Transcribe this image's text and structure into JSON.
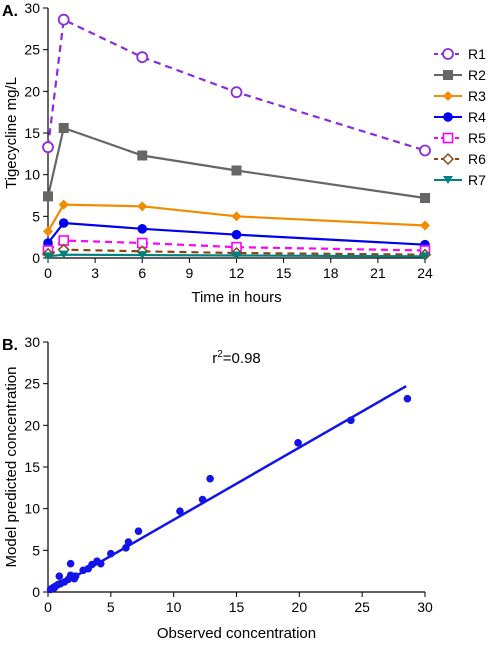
{
  "chart_data": [
    {
      "type": "line",
      "panel_label": "A.",
      "xlabel": "Time in hours",
      "ylabel": "Tigecycline mg/L",
      "xlim": [
        0,
        24
      ],
      "ylim": [
        0,
        30
      ],
      "xticks": [
        0,
        3,
        6,
        9,
        12,
        15,
        18,
        21,
        24
      ],
      "yticks": [
        0,
        5,
        10,
        15,
        20,
        25,
        30
      ],
      "grid": false,
      "legend_position": "right",
      "x": [
        0,
        1,
        6,
        12,
        24
      ],
      "series": [
        {
          "name": "R1",
          "values": [
            13.3,
            28.6,
            24.1,
            19.9,
            12.9
          ],
          "color": "#8a2be2",
          "marker": "circle-open",
          "dash": true
        },
        {
          "name": "R2",
          "values": [
            7.4,
            15.6,
            12.3,
            10.5,
            7.2
          ],
          "color": "#666666",
          "marker": "square",
          "dash": false
        },
        {
          "name": "R3",
          "values": [
            3.2,
            6.4,
            6.2,
            5.0,
            3.9
          ],
          "color": "#f28b00",
          "marker": "diamond",
          "dash": false
        },
        {
          "name": "R4",
          "values": [
            1.8,
            4.2,
            3.5,
            2.8,
            1.6
          ],
          "color": "#0000ee",
          "marker": "circle",
          "dash": false
        },
        {
          "name": "R5",
          "values": [
            0.9,
            2.1,
            1.8,
            1.3,
            0.9
          ],
          "color": "#ff00ff",
          "marker": "square-open",
          "dash": true
        },
        {
          "name": "R6",
          "values": [
            0.5,
            1.0,
            0.8,
            0.6,
            0.4
          ],
          "color": "#8b4513",
          "marker": "diamond-open",
          "dash": true
        },
        {
          "name": "R7",
          "values": [
            0.2,
            0.4,
            0.35,
            0.3,
            0.2
          ],
          "color": "#008080",
          "marker": "triangle-down",
          "dash": false
        }
      ]
    },
    {
      "type": "scatter",
      "panel_label": "B.",
      "xlabel": "Observed concentration",
      "ylabel": "Model predicted concentration",
      "xlim": [
        0,
        30
      ],
      "ylim": [
        0,
        30
      ],
      "xticks": [
        0,
        5,
        10,
        15,
        20,
        25,
        30
      ],
      "yticks": [
        0,
        5,
        10,
        15,
        20,
        25,
        30
      ],
      "grid": false,
      "annotation": {
        "base": "r",
        "sup": "2",
        "rest": "=0.98",
        "x": 15,
        "y": 27.5
      },
      "color": "#1414e6",
      "fit_line": {
        "x": [
          0,
          28.5
        ],
        "y": [
          0,
          24.7
        ]
      },
      "points": [
        {
          "x": 0.2,
          "y": 0.3
        },
        {
          "x": 0.3,
          "y": 0.4
        },
        {
          "x": 0.4,
          "y": 0.5
        },
        {
          "x": 0.5,
          "y": 0.5
        },
        {
          "x": 0.6,
          "y": 0.7
        },
        {
          "x": 0.8,
          "y": 0.9
        },
        {
          "x": 1.0,
          "y": 1.0
        },
        {
          "x": 0.9,
          "y": 1.9
        },
        {
          "x": 1.3,
          "y": 1.2
        },
        {
          "x": 1.6,
          "y": 1.5
        },
        {
          "x": 1.8,
          "y": 2.0
        },
        {
          "x": 2.1,
          "y": 1.6
        },
        {
          "x": 1.8,
          "y": 3.4
        },
        {
          "x": 2.2,
          "y": 1.9
        },
        {
          "x": 2.8,
          "y": 2.6
        },
        {
          "x": 3.2,
          "y": 2.8
        },
        {
          "x": 3.5,
          "y": 3.3
        },
        {
          "x": 3.9,
          "y": 3.7
        },
        {
          "x": 4.2,
          "y": 3.4
        },
        {
          "x": 5.0,
          "y": 4.6
        },
        {
          "x": 6.2,
          "y": 5.3
        },
        {
          "x": 6.4,
          "y": 6.0
        },
        {
          "x": 7.2,
          "y": 7.3
        },
        {
          "x": 10.5,
          "y": 9.7
        },
        {
          "x": 12.3,
          "y": 11.1
        },
        {
          "x": 12.9,
          "y": 13.6
        },
        {
          "x": 19.9,
          "y": 17.9
        },
        {
          "x": 24.1,
          "y": 20.6
        },
        {
          "x": 28.6,
          "y": 23.2
        }
      ]
    }
  ]
}
